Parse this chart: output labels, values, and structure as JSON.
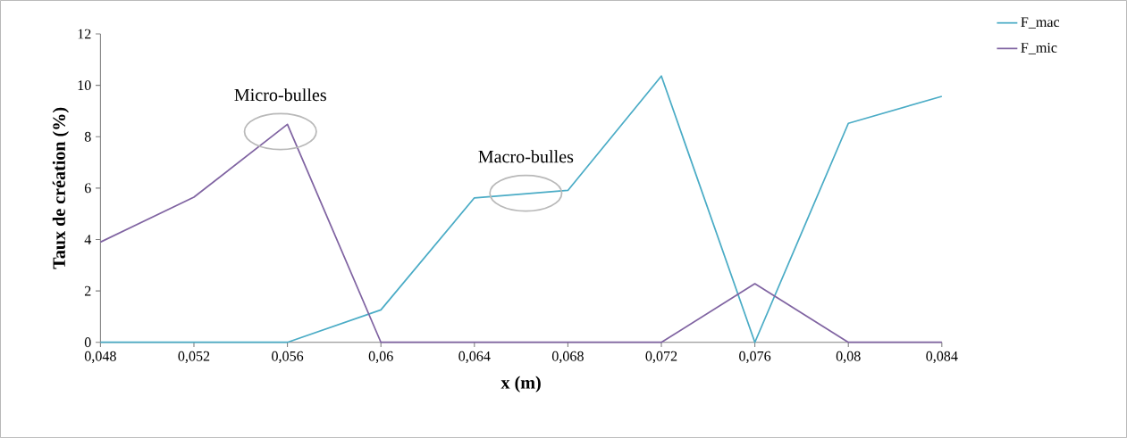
{
  "chart_data": {
    "type": "line",
    "xlabel": "x (m)",
    "ylabel": "Taux de création (%)",
    "x": [
      0.048,
      0.052,
      0.056,
      0.06,
      0.064,
      0.068,
      0.072,
      0.076,
      0.08,
      0.084
    ],
    "series": [
      {
        "name": "F_mac",
        "color": "#4bacc6",
        "values": [
          0,
          0,
          0,
          1.26,
          5.62,
          5.91,
          10.36,
          0,
          8.52,
          9.57
        ]
      },
      {
        "name": "F_mic",
        "color": "#8064a2",
        "values": [
          3.9,
          5.65,
          8.48,
          0,
          0,
          0,
          0,
          2.28,
          0,
          0
        ]
      }
    ],
    "xlim": [
      0.048,
      0.084
    ],
    "xticks": [
      {
        "value": 0.048,
        "label": "0,048"
      },
      {
        "value": 0.052,
        "label": "0,052"
      },
      {
        "value": 0.056,
        "label": "0,056"
      },
      {
        "value": 0.06,
        "label": "0,06"
      },
      {
        "value": 0.064,
        "label": "0,064"
      },
      {
        "value": 0.068,
        "label": "0,068"
      },
      {
        "value": 0.072,
        "label": "0,072"
      },
      {
        "value": 0.076,
        "label": "0,076"
      },
      {
        "value": 0.08,
        "label": "0,08"
      },
      {
        "value": 0.084,
        "label": "0,084"
      }
    ],
    "ylim": [
      0,
      12
    ],
    "yticks": [
      0,
      2,
      4,
      6,
      8,
      10,
      12
    ],
    "annotations": [
      {
        "text": "Micro-bulles",
        "x": 0.0557,
        "y": 8.2
      },
      {
        "text": "Macro-bulles",
        "x": 0.0662,
        "y": 5.8
      }
    ],
    "legend": "top right"
  }
}
